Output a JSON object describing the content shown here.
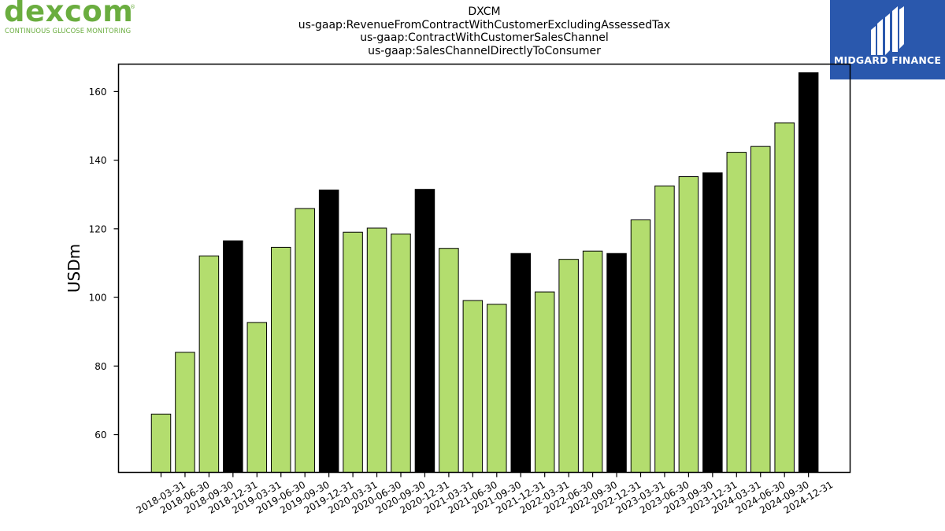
{
  "header": {
    "title_lines": [
      "DXCM",
      "us-gaap:RevenueFromContractWithCustomerExcludingAssessedTax",
      "us-gaap:ContractWithCustomerSalesChannel",
      "us-gaap:SalesChannelDirectlyToConsumer"
    ]
  },
  "logos": {
    "left": {
      "word": "dexcom",
      "registered": "®",
      "tagline": "CONTINUOUS GLUCOSE MONITORING"
    },
    "right": {
      "brand": "MIDGARD FINANCE"
    }
  },
  "colors": {
    "quarter_bar": "#b3dd6e",
    "year_end_bar": "#000000",
    "edge": "#000000",
    "dexcom_green": "#6aad3f",
    "midgard_blue": "#2a58ad"
  },
  "chart_data": {
    "type": "bar",
    "title": "DXCM\nus-gaap:RevenueFromContractWithCustomerExcludingAssessedTax\nus-gaap:ContractWithCustomerSalesChannel\nus-gaap:SalesChannelDirectlyToConsumer",
    "xlabel": "",
    "ylabel": "USDm",
    "ylim": [
      49,
      168
    ],
    "yticks": [
      60,
      80,
      100,
      120,
      140,
      160
    ],
    "grid": false,
    "categories": [
      "2018-03-31",
      "2018-06-30",
      "2018-09-30",
      "2018-12-31",
      "2019-03-31",
      "2019-06-30",
      "2019-09-30",
      "2019-12-31",
      "2020-03-31",
      "2020-06-30",
      "2020-09-30",
      "2020-12-31",
      "2021-03-31",
      "2021-06-30",
      "2021-09-30",
      "2021-12-31",
      "2022-03-31",
      "2022-06-30",
      "2022-09-30",
      "2022-12-31",
      "2023-03-31",
      "2023-06-30",
      "2023-09-30",
      "2023-12-31",
      "2024-03-31",
      "2024-06-30",
      "2024-09-30",
      "2024-12-31"
    ],
    "values": [
      66.0,
      84.0,
      112.1,
      116.5,
      92.7,
      114.6,
      125.9,
      131.3,
      119.0,
      120.2,
      118.5,
      131.5,
      114.3,
      99.1,
      98.0,
      112.8,
      101.6,
      111.1,
      113.5,
      112.8,
      122.6,
      132.5,
      135.2,
      136.3,
      142.3,
      144.0,
      150.9,
      165.5
    ],
    "year_end": [
      false,
      false,
      false,
      true,
      false,
      false,
      false,
      true,
      false,
      false,
      false,
      true,
      false,
      false,
      false,
      true,
      false,
      false,
      false,
      true,
      false,
      false,
      false,
      true,
      false,
      false,
      false,
      true
    ]
  }
}
